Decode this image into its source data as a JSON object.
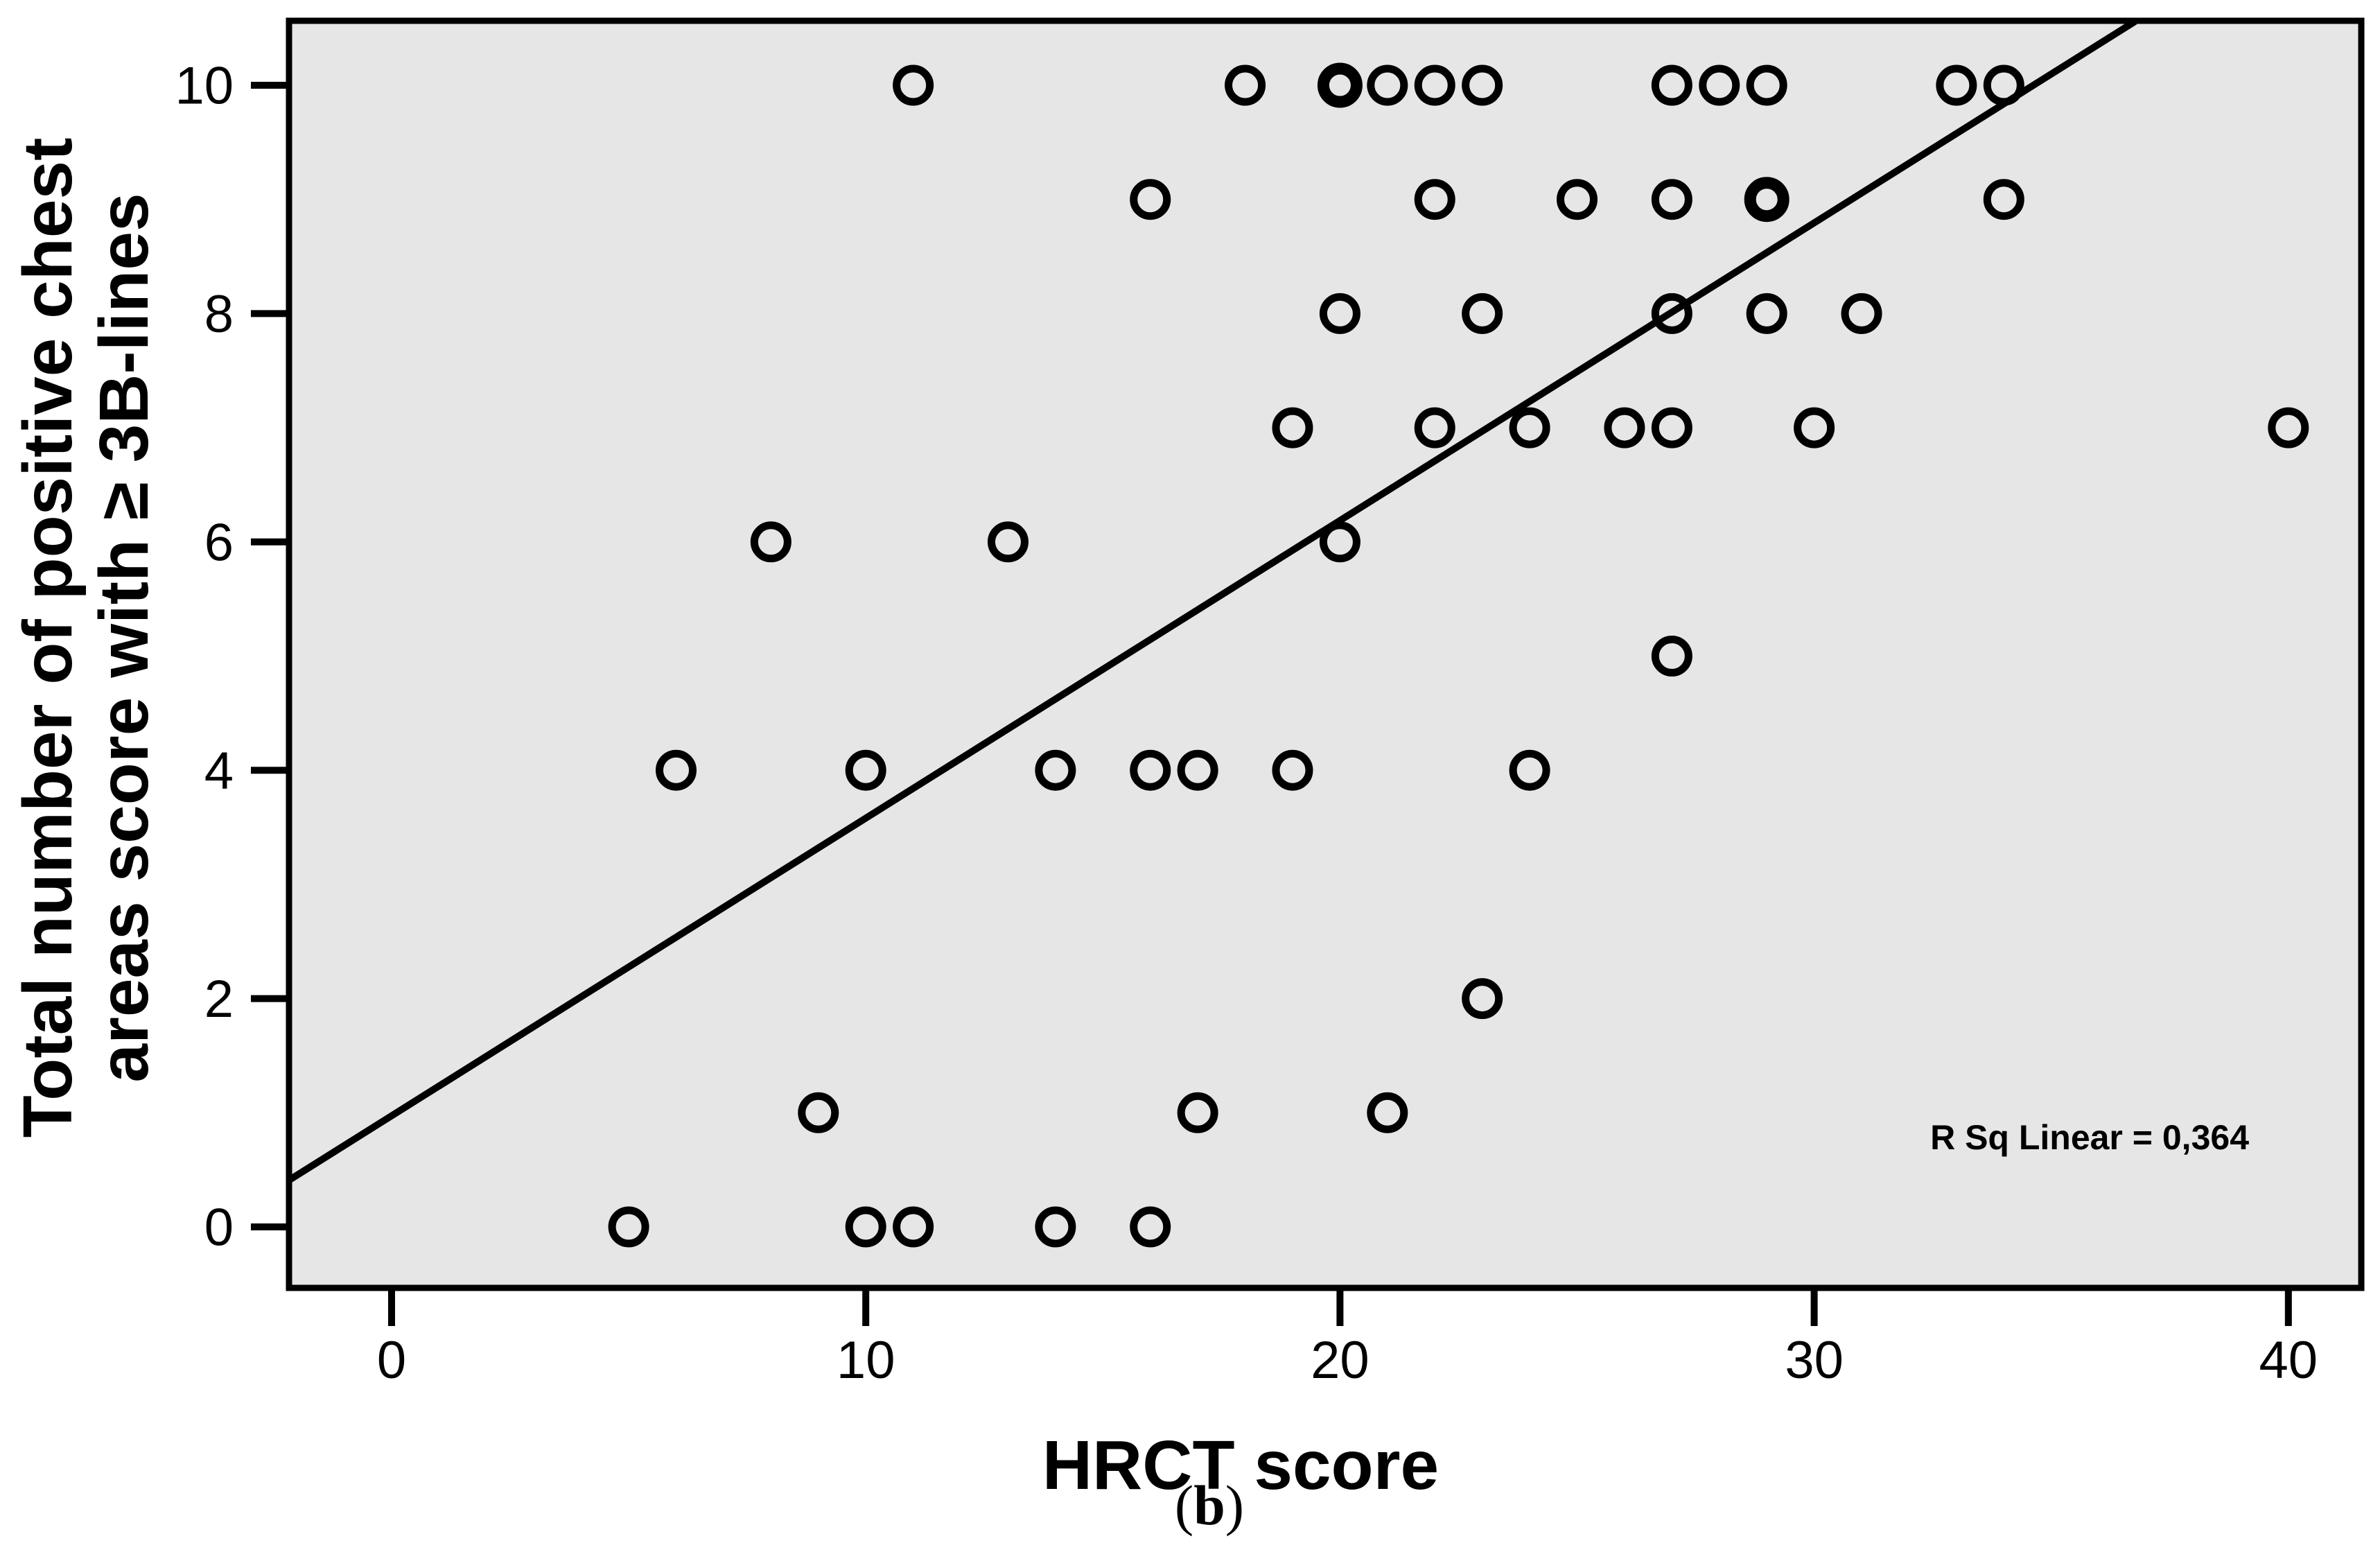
{
  "figure": {
    "caption_open": "(",
    "caption_letter": "b",
    "caption_close": ")",
    "page_background": "#ffffff"
  },
  "chart_data": {
    "type": "scatter",
    "title": "",
    "xlabel": "HRCT score",
    "ylabel_line1": "Total number of positive chest",
    "ylabel_line2": "areas score with ≥ 3B-lines",
    "annotation": "R Sq Linear = 0,364",
    "x_ticks": [
      0,
      10,
      20,
      30,
      40
    ],
    "y_ticks": [
      0,
      2,
      4,
      6,
      8,
      10
    ],
    "xlim": [
      -2.16,
      41.54
    ],
    "ylim": [
      -0.53,
      10.56
    ],
    "grid": false,
    "legend": "none",
    "plot_bg": "#e6e6e6",
    "marker_color": "#000000",
    "line_color": "#000000",
    "regression_line": {
      "x1": -2.16,
      "y1": 0.41,
      "x2": 36.77,
      "y2": 10.56,
      "slope": 0.26,
      "intercept": 0.98
    },
    "points": [
      {
        "x": 11,
        "y": 10,
        "n": 1
      },
      {
        "x": 18,
        "y": 10,
        "n": 1
      },
      {
        "x": 20,
        "y": 10,
        "n": 2
      },
      {
        "x": 21,
        "y": 10,
        "n": 1
      },
      {
        "x": 22,
        "y": 10,
        "n": 1
      },
      {
        "x": 23,
        "y": 10,
        "n": 1
      },
      {
        "x": 27,
        "y": 10,
        "n": 1
      },
      {
        "x": 28,
        "y": 10,
        "n": 1
      },
      {
        "x": 29,
        "y": 10,
        "n": 1
      },
      {
        "x": 33,
        "y": 10,
        "n": 1
      },
      {
        "x": 34,
        "y": 10,
        "n": 1
      },
      {
        "x": 16,
        "y": 9,
        "n": 1
      },
      {
        "x": 22,
        "y": 9,
        "n": 1
      },
      {
        "x": 25,
        "y": 9,
        "n": 1
      },
      {
        "x": 27,
        "y": 9,
        "n": 1
      },
      {
        "x": 29,
        "y": 9,
        "n": 2
      },
      {
        "x": 34,
        "y": 9,
        "n": 1
      },
      {
        "x": 20,
        "y": 8,
        "n": 1
      },
      {
        "x": 23,
        "y": 8,
        "n": 1
      },
      {
        "x": 27,
        "y": 8,
        "n": 1
      },
      {
        "x": 29,
        "y": 8,
        "n": 1
      },
      {
        "x": 31,
        "y": 8,
        "n": 1
      },
      {
        "x": 19,
        "y": 7,
        "n": 1
      },
      {
        "x": 22,
        "y": 7,
        "n": 1
      },
      {
        "x": 24,
        "y": 7,
        "n": 1
      },
      {
        "x": 26,
        "y": 7,
        "n": 1
      },
      {
        "x": 27,
        "y": 7,
        "n": 1
      },
      {
        "x": 30,
        "y": 7,
        "n": 1
      },
      {
        "x": 40,
        "y": 7,
        "n": 1
      },
      {
        "x": 8,
        "y": 6,
        "n": 1
      },
      {
        "x": 13,
        "y": 6,
        "n": 1
      },
      {
        "x": 20,
        "y": 6,
        "n": 1
      },
      {
        "x": 27,
        "y": 5,
        "n": 1
      },
      {
        "x": 6,
        "y": 4,
        "n": 1
      },
      {
        "x": 10,
        "y": 4,
        "n": 1
      },
      {
        "x": 14,
        "y": 4,
        "n": 1
      },
      {
        "x": 16,
        "y": 4,
        "n": 1
      },
      {
        "x": 17,
        "y": 4,
        "n": 1
      },
      {
        "x": 19,
        "y": 4,
        "n": 1
      },
      {
        "x": 24,
        "y": 4,
        "n": 1
      },
      {
        "x": 23,
        "y": 2,
        "n": 1
      },
      {
        "x": 9,
        "y": 1,
        "n": 1
      },
      {
        "x": 17,
        "y": 1,
        "n": 1
      },
      {
        "x": 21,
        "y": 1,
        "n": 1
      },
      {
        "x": 5,
        "y": 0,
        "n": 1
      },
      {
        "x": 10,
        "y": 0,
        "n": 1
      },
      {
        "x": 11,
        "y": 0,
        "n": 1
      },
      {
        "x": 14,
        "y": 0,
        "n": 1
      },
      {
        "x": 16,
        "y": 0,
        "n": 1
      }
    ]
  }
}
